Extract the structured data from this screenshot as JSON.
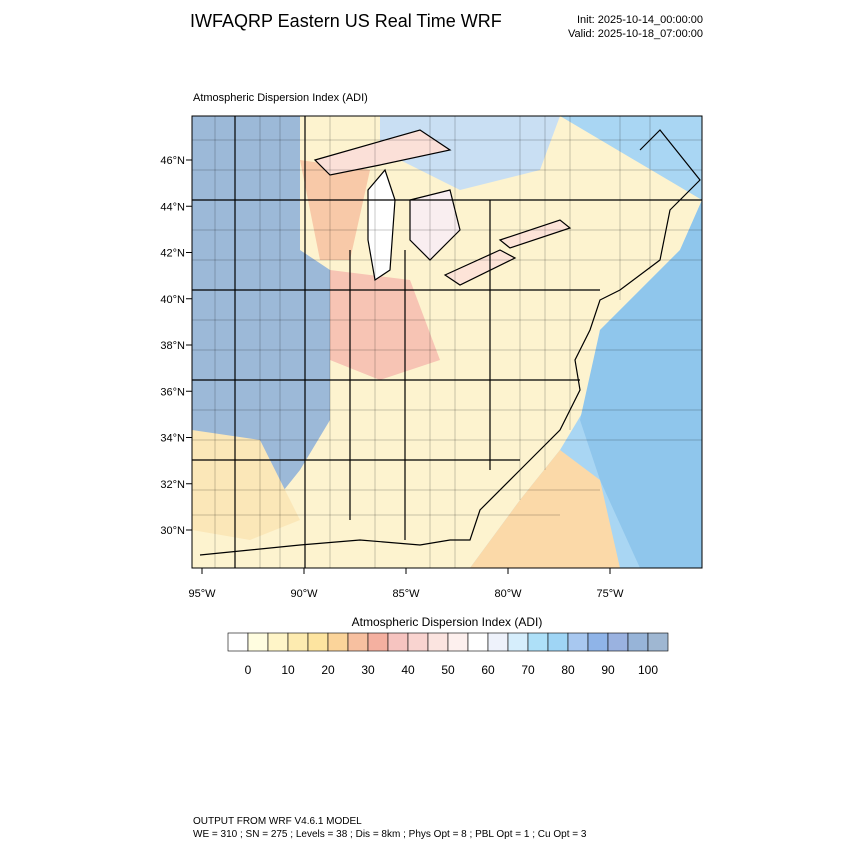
{
  "header": {
    "title": "IWFAQRP Eastern US Real Time WRF",
    "init": "Init: 2025-10-14_00:00:00",
    "valid": "Valid: 2025-10-18_07:00:00"
  },
  "map": {
    "subtitle": "Atmospheric Dispersion Index   (ADI)",
    "lat_labels": [
      "46°N",
      "44°N",
      "42°N",
      "40°N",
      "38°N",
      "36°N",
      "34°N",
      "32°N",
      "30°N"
    ],
    "lon_labels": [
      "95°W",
      "90°W",
      "85°W",
      "80°W",
      "75°W"
    ]
  },
  "colorbar": {
    "title": "Atmospheric Dispersion Index  (ADI)",
    "labels": [
      "0",
      "10",
      "20",
      "30",
      "40",
      "50",
      "60",
      "70",
      "80",
      "90",
      "100"
    ],
    "colors": [
      "#ffffff",
      "#fffde0",
      "#fff5c8",
      "#fdebb0",
      "#fde4a0",
      "#fbd49a",
      "#f7c0a0",
      "#f4b0a0",
      "#f6c4c0",
      "#f9d4d0",
      "#fbe4e0",
      "#fdf0ee",
      "#ffffff",
      "#eef2fb",
      "#d6eefc",
      "#aee0f8",
      "#9fd5f5",
      "#a8c8f0",
      "#8fb4e8",
      "#9ab2e0",
      "#97b4d8",
      "#9fb7d2"
    ]
  },
  "footer": {
    "line1": "OUTPUT FROM WRF V4.6.1 MODEL",
    "line2": "WE = 310 ; SN = 275 ; Levels = 38 ; Dis = 8km ; Phys Opt = 8 ; PBL Opt = 1 ; Cu Opt = 3"
  }
}
